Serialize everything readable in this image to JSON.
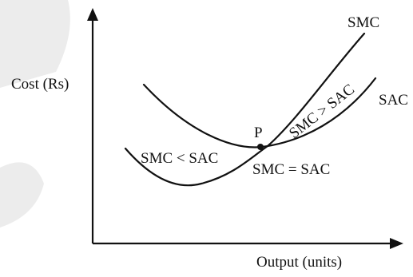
{
  "chart_data": {
    "type": "line",
    "title": "",
    "xlabel": "Output (units)",
    "ylabel": "Cost (Rs)",
    "series": [
      {
        "name": "SMC"
      },
      {
        "name": "SAC"
      }
    ],
    "annotations": {
      "point": "P",
      "below_P": "SMC < SAC",
      "above_P": "SMC > SAC",
      "at_P": "SMC = SAC"
    },
    "grid": false,
    "legend": "none"
  },
  "colors": {
    "ink": "#111111",
    "watermark": "#ececec"
  }
}
